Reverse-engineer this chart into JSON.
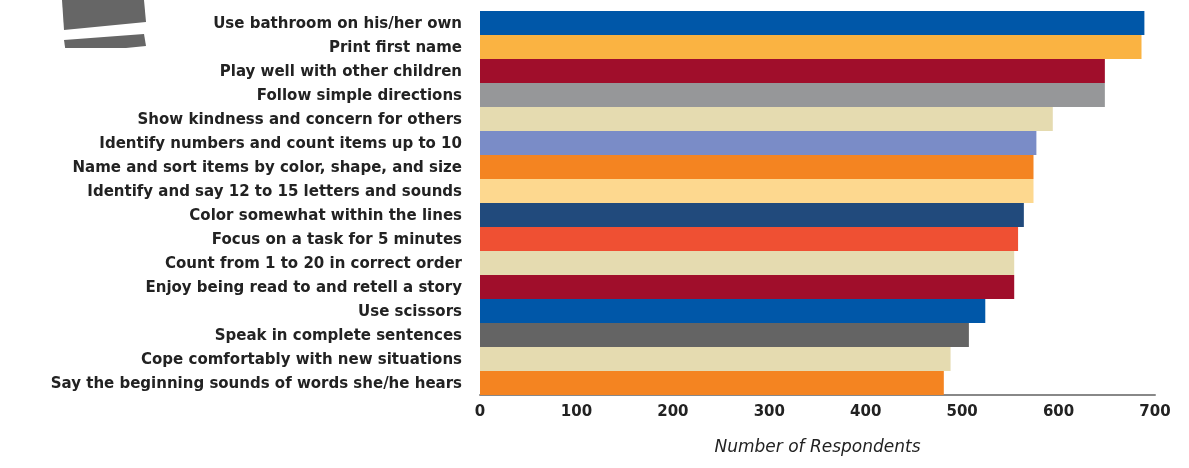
{
  "chart_data": {
    "type": "bar",
    "orientation": "horizontal",
    "xlabel": "Number of Respondents",
    "categories": [
      "Use bathroom on his/her own",
      "Print first name",
      "Play well with other children",
      "Follow simple directions",
      "Show kindness and concern for others",
      "Identify numbers and count items up to 10",
      "Name and sort items by color, shape, and size",
      "Identify and say 12 to 15 letters and sounds",
      "Color somewhat within the lines",
      "Focus on a task for 5 minutes",
      "Count from 1 to 20 in correct order",
      "Enjoy being read to and retell a story",
      "Use scissors",
      "Speak in complete sentences",
      "Cope comfortably with new situations",
      "Say the beginning sounds of words she/he hears"
    ],
    "values": [
      689,
      686,
      648,
      648,
      594,
      577,
      574,
      574,
      564,
      558,
      554,
      554,
      524,
      507,
      488,
      481
    ],
    "colors": [
      "#0057a8",
      "#fab342",
      "#a00e2b",
      "#969799",
      "#e5dbb0",
      "#7a8cc7",
      "#f48421",
      "#fdd88f",
      "#214a7c",
      "#ef5033",
      "#e5dbb0",
      "#a00e2b",
      "#0057a8",
      "#646464",
      "#e5dbb0",
      "#f48421"
    ],
    "xlim": [
      0,
      700
    ],
    "xticks": [
      0,
      100,
      200,
      300,
      400,
      500,
      600,
      700
    ],
    "grid": false
  }
}
